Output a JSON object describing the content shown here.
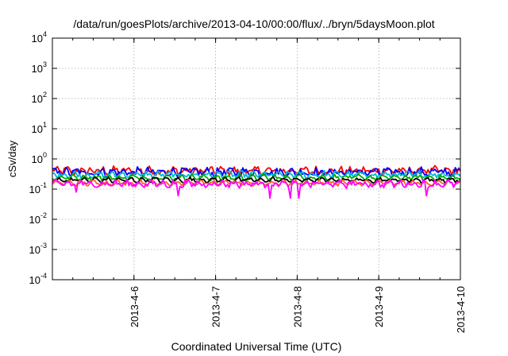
{
  "chart_data": {
    "type": "line",
    "title": "/data/run/goesPlots/archive/2013-04-10/00:00/flux/../bryn/5daysMoon.plot",
    "xlabel": "Coordinated Universal Time (UTC)",
    "ylabel": "cSv/day",
    "yscale": "log",
    "ylim": [
      0.0001,
      10000
    ],
    "yticks": [
      {
        "exp": "-4",
        "value": 0.0001
      },
      {
        "exp": "-3",
        "value": 0.001
      },
      {
        "exp": "-2",
        "value": 0.01
      },
      {
        "exp": "-1",
        "value": 0.1
      },
      {
        "exp": "0",
        "value": 1
      },
      {
        "exp": "1",
        "value": 10
      },
      {
        "exp": "2",
        "value": 100
      },
      {
        "exp": "3",
        "value": 1000
      },
      {
        "exp": "4",
        "value": 10000
      }
    ],
    "xlim": [
      "2013-04-05 00:00",
      "2013-04-10 00:00"
    ],
    "xticks": [
      "2013-4-6",
      "2013-4-7",
      "2013-4-8",
      "2013-4-9",
      "2013-4-10"
    ],
    "grid": true,
    "legend": "none",
    "series": [
      {
        "color": "#ff0000",
        "level": 0.4,
        "jitter": 0.15,
        "dips": []
      },
      {
        "color": "#0000ff",
        "level": 0.36,
        "jitter": 0.16,
        "dips": []
      },
      {
        "color": "#00b8d8",
        "level": 0.3,
        "jitter": 0.1,
        "dips": []
      },
      {
        "color": "#00aa00",
        "level": 0.24,
        "jitter": 0.08,
        "dips": []
      },
      {
        "color": "#000000",
        "level": 0.2,
        "jitter": 0.07,
        "dips": []
      },
      {
        "color": "#ff6030",
        "level": 0.16,
        "jitter": 0.07,
        "dips": []
      },
      {
        "color": "#ff00ff",
        "level": 0.15,
        "jitter": 0.12,
        "dips": [
          {
            "x": "2013-04-05 07:00",
            "value": 0.08
          },
          {
            "x": "2013-04-06 13:00",
            "value": 0.06
          },
          {
            "x": "2013-04-07 16:00",
            "value": 0.05
          },
          {
            "x": "2013-04-07 22:00",
            "value": 0.05
          },
          {
            "x": "2013-04-08 00:30",
            "value": 0.05
          },
          {
            "x": "2013-04-09 14:00",
            "value": 0.06
          }
        ]
      }
    ]
  }
}
